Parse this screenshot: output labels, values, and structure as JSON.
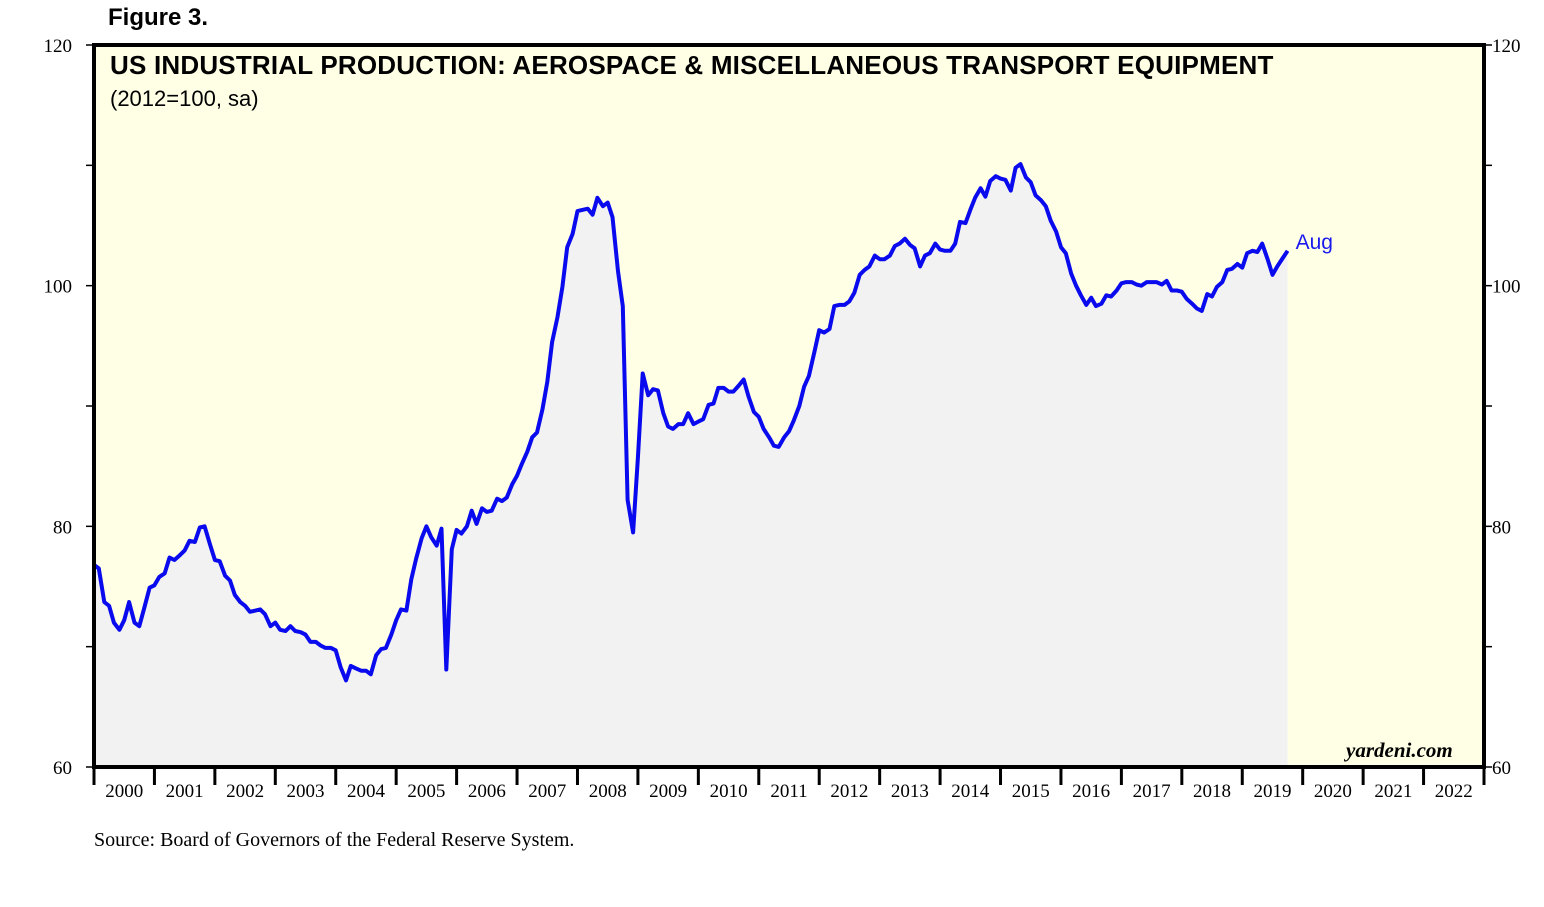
{
  "figure_label": "Figure 3.",
  "source": "Source: Board of Governors of the Federal Reserve System.",
  "watermark": "yardeni.com",
  "colors": {
    "line": "#0a0aee",
    "plot_background": "#ffffe6",
    "area_fill": "#f2f2f2",
    "frame": "#000000"
  },
  "chart_data": {
    "type": "area",
    "title": "US INDUSTRIAL PRODUCTION: AEROSPACE & MISCELLANEOUS TRANSPORT EQUIPMENT",
    "subtitle": "(2012=100, sa)",
    "ylim": [
      60,
      120
    ],
    "yticks": [
      60,
      80,
      100,
      120
    ],
    "xlim": [
      2000,
      2023
    ],
    "x_tick_labels": [
      "2000",
      "2001",
      "2002",
      "2003",
      "2004",
      "2005",
      "2006",
      "2007",
      "2008",
      "2009",
      "2010",
      "2011",
      "2012",
      "2013",
      "2014",
      "2015",
      "2016",
      "2017",
      "2018",
      "2019",
      "2020",
      "2021",
      "2022"
    ],
    "grid": false,
    "end_label": "Aug",
    "series": [
      {
        "points": [
          [
            2000.0,
            76.8
          ],
          [
            2000.08,
            76.5
          ],
          [
            2000.17,
            73.7
          ],
          [
            2000.25,
            73.4
          ],
          [
            2000.33,
            72.0
          ],
          [
            2000.42,
            71.4
          ],
          [
            2000.5,
            72.2
          ],
          [
            2000.58,
            73.7
          ],
          [
            2000.67,
            72.0
          ],
          [
            2000.75,
            71.7
          ],
          [
            2000.83,
            73.2
          ],
          [
            2000.92,
            74.9
          ],
          [
            2001.0,
            75.1
          ],
          [
            2001.08,
            75.8
          ],
          [
            2001.17,
            76.1
          ],
          [
            2001.25,
            77.4
          ],
          [
            2001.33,
            77.2
          ],
          [
            2001.42,
            77.6
          ],
          [
            2001.5,
            78.0
          ],
          [
            2001.58,
            78.8
          ],
          [
            2001.67,
            78.7
          ],
          [
            2001.75,
            79.9
          ],
          [
            2001.83,
            80.0
          ],
          [
            2001.92,
            78.5
          ],
          [
            2002.0,
            77.2
          ],
          [
            2002.08,
            77.1
          ],
          [
            2002.17,
            75.9
          ],
          [
            2002.25,
            75.5
          ],
          [
            2002.33,
            74.3
          ],
          [
            2002.42,
            73.7
          ],
          [
            2002.5,
            73.4
          ],
          [
            2002.58,
            72.9
          ],
          [
            2002.67,
            73.0
          ],
          [
            2002.75,
            73.1
          ],
          [
            2002.83,
            72.7
          ],
          [
            2002.92,
            71.7
          ],
          [
            2003.0,
            72.0
          ],
          [
            2003.08,
            71.4
          ],
          [
            2003.17,
            71.3
          ],
          [
            2003.25,
            71.7
          ],
          [
            2003.33,
            71.3
          ],
          [
            2003.42,
            71.2
          ],
          [
            2003.5,
            71.0
          ],
          [
            2003.58,
            70.4
          ],
          [
            2003.67,
            70.4
          ],
          [
            2003.75,
            70.1
          ],
          [
            2003.83,
            69.9
          ],
          [
            2003.92,
            69.9
          ],
          [
            2004.0,
            69.7
          ],
          [
            2004.08,
            68.3
          ],
          [
            2004.17,
            67.2
          ],
          [
            2004.25,
            68.4
          ],
          [
            2004.33,
            68.2
          ],
          [
            2004.42,
            68.0
          ],
          [
            2004.5,
            68.0
          ],
          [
            2004.58,
            67.7
          ],
          [
            2004.67,
            69.3
          ],
          [
            2004.75,
            69.8
          ],
          [
            2004.83,
            69.9
          ],
          [
            2004.92,
            71.0
          ],
          [
            2005.0,
            72.2
          ],
          [
            2005.08,
            73.1
          ],
          [
            2005.17,
            73.0
          ],
          [
            2005.25,
            75.6
          ],
          [
            2005.33,
            77.3
          ],
          [
            2005.42,
            79.0
          ],
          [
            2005.5,
            80.0
          ],
          [
            2005.58,
            79.1
          ],
          [
            2005.67,
            78.4
          ],
          [
            2005.75,
            79.8
          ],
          [
            2005.83,
            68.1
          ],
          [
            2005.92,
            78.1
          ],
          [
            2006.0,
            79.7
          ],
          [
            2006.08,
            79.4
          ],
          [
            2006.17,
            80.0
          ],
          [
            2006.25,
            81.3
          ],
          [
            2006.33,
            80.2
          ],
          [
            2006.42,
            81.5
          ],
          [
            2006.5,
            81.2
          ],
          [
            2006.58,
            81.3
          ],
          [
            2006.67,
            82.3
          ],
          [
            2006.75,
            82.1
          ],
          [
            2006.83,
            82.4
          ],
          [
            2006.92,
            83.5
          ],
          [
            2007.0,
            84.2
          ],
          [
            2007.08,
            85.2
          ],
          [
            2007.17,
            86.2
          ],
          [
            2007.25,
            87.4
          ],
          [
            2007.33,
            87.8
          ],
          [
            2007.42,
            89.7
          ],
          [
            2007.5,
            92.0
          ],
          [
            2007.58,
            95.3
          ],
          [
            2007.67,
            97.4
          ],
          [
            2007.75,
            99.9
          ],
          [
            2007.83,
            103.2
          ],
          [
            2007.92,
            104.3
          ],
          [
            2008.0,
            106.2
          ],
          [
            2008.08,
            106.3
          ],
          [
            2008.17,
            106.4
          ],
          [
            2008.25,
            105.9
          ],
          [
            2008.33,
            107.3
          ],
          [
            2008.42,
            106.6
          ],
          [
            2008.5,
            106.9
          ],
          [
            2008.58,
            105.7
          ],
          [
            2008.67,
            101.2
          ],
          [
            2008.75,
            98.3
          ],
          [
            2008.83,
            82.2
          ],
          [
            2008.92,
            79.5
          ],
          [
            2009.0,
            85.7
          ],
          [
            2009.08,
            92.7
          ],
          [
            2009.17,
            90.9
          ],
          [
            2009.25,
            91.4
          ],
          [
            2009.33,
            91.3
          ],
          [
            2009.42,
            89.4
          ],
          [
            2009.5,
            88.3
          ],
          [
            2009.58,
            88.1
          ],
          [
            2009.67,
            88.5
          ],
          [
            2009.75,
            88.5
          ],
          [
            2009.83,
            89.4
          ],
          [
            2009.92,
            88.5
          ],
          [
            2010.0,
            88.7
          ],
          [
            2010.08,
            88.9
          ],
          [
            2010.17,
            90.1
          ],
          [
            2010.25,
            90.2
          ],
          [
            2010.33,
            91.5
          ],
          [
            2010.42,
            91.5
          ],
          [
            2010.5,
            91.2
          ],
          [
            2010.58,
            91.2
          ],
          [
            2010.67,
            91.7
          ],
          [
            2010.75,
            92.2
          ],
          [
            2010.83,
            90.8
          ],
          [
            2010.92,
            89.5
          ],
          [
            2011.0,
            89.1
          ],
          [
            2011.08,
            88.1
          ],
          [
            2011.17,
            87.4
          ],
          [
            2011.25,
            86.7
          ],
          [
            2011.33,
            86.6
          ],
          [
            2011.42,
            87.4
          ],
          [
            2011.5,
            87.9
          ],
          [
            2011.58,
            88.8
          ],
          [
            2011.67,
            90.0
          ],
          [
            2011.75,
            91.6
          ],
          [
            2011.83,
            92.5
          ],
          [
            2011.92,
            94.5
          ],
          [
            2012.0,
            96.3
          ],
          [
            2012.08,
            96.1
          ],
          [
            2012.17,
            96.4
          ],
          [
            2012.25,
            98.3
          ],
          [
            2012.33,
            98.4
          ],
          [
            2012.42,
            98.4
          ],
          [
            2012.5,
            98.7
          ],
          [
            2012.58,
            99.4
          ],
          [
            2012.67,
            100.9
          ],
          [
            2012.75,
            101.3
          ],
          [
            2012.83,
            101.6
          ],
          [
            2012.92,
            102.5
          ],
          [
            2013.0,
            102.2
          ],
          [
            2013.08,
            102.2
          ],
          [
            2013.17,
            102.5
          ],
          [
            2013.25,
            103.3
          ],
          [
            2013.33,
            103.5
          ],
          [
            2013.42,
            103.9
          ],
          [
            2013.5,
            103.4
          ],
          [
            2013.58,
            103.1
          ],
          [
            2013.67,
            101.6
          ],
          [
            2013.75,
            102.5
          ],
          [
            2013.83,
            102.7
          ],
          [
            2013.92,
            103.5
          ],
          [
            2014.0,
            103.0
          ],
          [
            2014.08,
            102.9
          ],
          [
            2014.17,
            102.9
          ],
          [
            2014.25,
            103.5
          ],
          [
            2014.33,
            105.3
          ],
          [
            2014.42,
            105.2
          ],
          [
            2014.5,
            106.3
          ],
          [
            2014.58,
            107.3
          ],
          [
            2014.67,
            108.1
          ],
          [
            2014.75,
            107.4
          ],
          [
            2014.83,
            108.7
          ],
          [
            2014.92,
            109.1
          ],
          [
            2015.0,
            108.9
          ],
          [
            2015.08,
            108.8
          ],
          [
            2015.17,
            107.9
          ],
          [
            2015.25,
            109.8
          ],
          [
            2015.33,
            110.1
          ],
          [
            2015.42,
            109.0
          ],
          [
            2015.5,
            108.6
          ],
          [
            2015.58,
            107.5
          ],
          [
            2015.67,
            107.1
          ],
          [
            2015.75,
            106.6
          ],
          [
            2015.83,
            105.4
          ],
          [
            2015.92,
            104.5
          ],
          [
            2016.0,
            103.2
          ],
          [
            2016.08,
            102.7
          ],
          [
            2016.17,
            101.0
          ],
          [
            2016.25,
            100.0
          ],
          [
            2016.33,
            99.2
          ],
          [
            2016.42,
            98.4
          ],
          [
            2016.5,
            99.0
          ],
          [
            2016.58,
            98.3
          ],
          [
            2016.67,
            98.5
          ],
          [
            2016.75,
            99.2
          ],
          [
            2016.83,
            99.1
          ],
          [
            2016.92,
            99.6
          ],
          [
            2017.0,
            100.2
          ],
          [
            2017.08,
            100.3
          ],
          [
            2017.17,
            100.3
          ],
          [
            2017.25,
            100.1
          ],
          [
            2017.33,
            100.0
          ],
          [
            2017.42,
            100.3
          ],
          [
            2017.5,
            100.3
          ],
          [
            2017.58,
            100.3
          ],
          [
            2017.67,
            100.1
          ],
          [
            2017.75,
            100.4
          ],
          [
            2017.83,
            99.6
          ],
          [
            2017.92,
            99.6
          ],
          [
            2018.0,
            99.5
          ],
          [
            2018.08,
            98.9
          ],
          [
            2018.17,
            98.5
          ],
          [
            2018.25,
            98.1
          ],
          [
            2018.33,
            97.9
          ],
          [
            2018.42,
            99.3
          ],
          [
            2018.5,
            99.1
          ],
          [
            2018.58,
            99.9
          ],
          [
            2018.67,
            100.3
          ],
          [
            2018.75,
            101.3
          ],
          [
            2018.83,
            101.4
          ],
          [
            2018.92,
            101.8
          ],
          [
            2019.0,
            101.5
          ],
          [
            2019.08,
            102.7
          ],
          [
            2019.17,
            102.9
          ],
          [
            2019.25,
            102.8
          ],
          [
            2019.33,
            103.5
          ],
          [
            2019.42,
            102.2
          ],
          [
            2019.5,
            100.9
          ],
          [
            2019.58,
            101.6
          ],
          [
            2019.67,
            102.3
          ],
          [
            2019.75,
            102.9
          ]
        ]
      }
    ]
  }
}
